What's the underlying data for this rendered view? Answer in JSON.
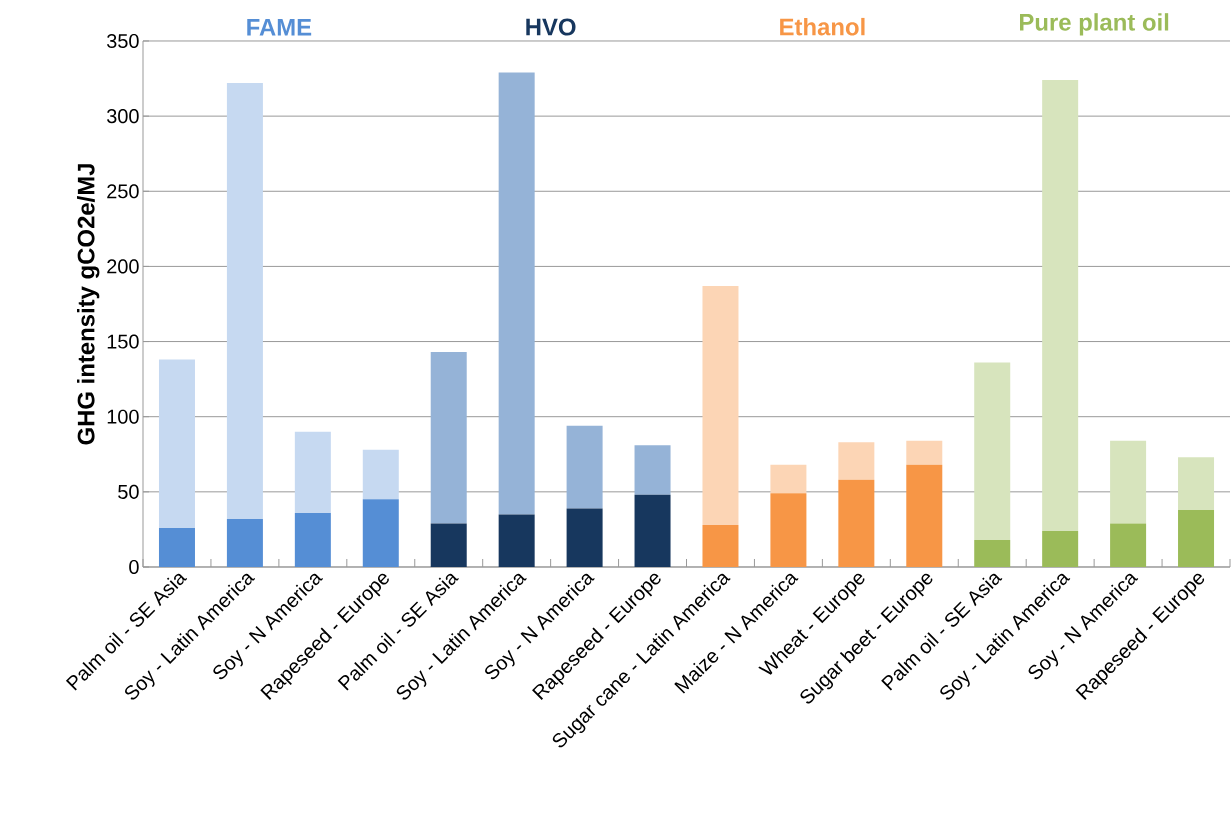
{
  "chart_data": {
    "type": "bar",
    "stacked": true,
    "ylabel": "GHG intensity gCO2e/MJ",
    "categories": [
      "Palm oil - SE Asia",
      "Soy - Latin America",
      "Soy - N America",
      "Rapeseed - Europe",
      "Palm oil - SE Asia",
      "Soy - Latin America",
      "Soy - N America",
      "Rapeseed - Europe",
      "Sugar cane - Latin America",
      "Maize - N America",
      "Wheat - Europe",
      "Sugar beet - Europe",
      "Palm oil - SE Asia",
      "Soy - Latin America",
      "Soy - N America",
      "Rapeseed - Europe"
    ],
    "series": [
      {
        "values": [
          26,
          32,
          36,
          45,
          29,
          35,
          39,
          48,
          28,
          49,
          58,
          68,
          18,
          24,
          29,
          38
        ],
        "colors": [
          "#558ed5",
          "#558ed5",
          "#558ed5",
          "#558ed5",
          "#17375e",
          "#17375e",
          "#17375e",
          "#17375e",
          "#f79646",
          "#f79646",
          "#f79646",
          "#f79646",
          "#9bbb59",
          "#9bbb59",
          "#9bbb59",
          "#9bbb59"
        ]
      },
      {
        "values": [
          112,
          290,
          54,
          33,
          114,
          294,
          55,
          33,
          159,
          19,
          25,
          16,
          118,
          300,
          55,
          35
        ],
        "colors": [
          "#c6d9f1",
          "#c6d9f1",
          "#c6d9f1",
          "#c6d9f1",
          "#95b3d7",
          "#95b3d7",
          "#95b3d7",
          "#95b3d7",
          "#fcd5b5",
          "#fcd5b5",
          "#fcd5b5",
          "#fcd5b5",
          "#d7e4bd",
          "#d7e4bd",
          "#d7e4bd",
          "#d7e4bd"
        ]
      }
    ],
    "annotations": [
      "FAME",
      "HVO",
      "Ethanol",
      "Pure plant oil"
    ],
    "ylim": [
      0,
      350
    ],
    "yticks": [
      0,
      50,
      100,
      150,
      200,
      250,
      300,
      350
    ],
    "grid": "y"
  }
}
